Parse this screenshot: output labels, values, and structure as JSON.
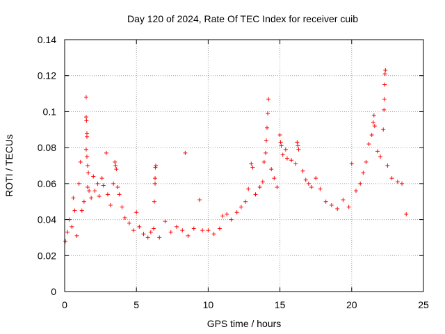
{
  "chart_data": {
    "type": "scatter",
    "title": "Day 120 of 2024, Rate Of TEC Index for receiver cuib",
    "xlabel": "GPS time / hours",
    "ylabel": "ROTI / TECUs",
    "xlim": [
      0,
      25
    ],
    "ylim": [
      0,
      0.14
    ],
    "xticks": [
      0,
      5,
      10,
      15,
      20,
      25
    ],
    "xtick_labels": [
      "0",
      "5",
      "10",
      "15",
      "20",
      "25"
    ],
    "yticks": [
      0,
      0.02,
      0.04,
      0.06,
      0.08,
      0.1,
      0.12,
      0.14
    ],
    "ytick_labels": [
      "0",
      "0.02",
      "0.04",
      "0.06",
      "0.08",
      "0.1",
      "0.12",
      "0.14"
    ],
    "grid": true,
    "marker": "plus",
    "color": "#ff0000",
    "series": [
      {
        "name": "ROTI",
        "points": [
          [
            0.05,
            0.028
          ],
          [
            0.2,
            0.033
          ],
          [
            0.35,
            0.04
          ],
          [
            0.5,
            0.036
          ],
          [
            0.6,
            0.052
          ],
          [
            0.7,
            0.045
          ],
          [
            0.85,
            0.031
          ],
          [
            1.0,
            0.06
          ],
          [
            1.1,
            0.072
          ],
          [
            1.2,
            0.045
          ],
          [
            1.35,
            0.05
          ],
          [
            1.5,
            0.108
          ],
          [
            1.5,
            0.097
          ],
          [
            1.52,
            0.095
          ],
          [
            1.55,
            0.088
          ],
          [
            1.55,
            0.086
          ],
          [
            1.5,
            0.079
          ],
          [
            1.55,
            0.075
          ],
          [
            1.6,
            0.07
          ],
          [
            1.65,
            0.066
          ],
          [
            1.6,
            0.058
          ],
          [
            1.7,
            0.056
          ],
          [
            1.85,
            0.052
          ],
          [
            2.0,
            0.064
          ],
          [
            2.1,
            0.056
          ],
          [
            2.3,
            0.06
          ],
          [
            2.4,
            0.053
          ],
          [
            2.6,
            0.063
          ],
          [
            2.7,
            0.059
          ],
          [
            2.9,
            0.077
          ],
          [
            3.0,
            0.054
          ],
          [
            3.2,
            0.048
          ],
          [
            3.4,
            0.06
          ],
          [
            3.5,
            0.072
          ],
          [
            3.55,
            0.07
          ],
          [
            3.6,
            0.068
          ],
          [
            3.7,
            0.058
          ],
          [
            3.8,
            0.054
          ],
          [
            4.0,
            0.047
          ],
          [
            4.2,
            0.041
          ],
          [
            4.5,
            0.038
          ],
          [
            4.8,
            0.034
          ],
          [
            5.0,
            0.044
          ],
          [
            5.2,
            0.036
          ],
          [
            5.5,
            0.032
          ],
          [
            5.8,
            0.03
          ],
          [
            6.0,
            0.033
          ],
          [
            6.2,
            0.035
          ],
          [
            6.25,
            0.05
          ],
          [
            6.3,
            0.06
          ],
          [
            6.3,
            0.063
          ],
          [
            6.32,
            0.069
          ],
          [
            6.35,
            0.07
          ],
          [
            6.6,
            0.03
          ],
          [
            7.0,
            0.039
          ],
          [
            7.4,
            0.033
          ],
          [
            7.8,
            0.036
          ],
          [
            8.2,
            0.034
          ],
          [
            8.4,
            0.077
          ],
          [
            8.6,
            0.031
          ],
          [
            9.0,
            0.035
          ],
          [
            9.4,
            0.051
          ],
          [
            9.6,
            0.034
          ],
          [
            10.0,
            0.034
          ],
          [
            10.4,
            0.032
          ],
          [
            10.8,
            0.035
          ],
          [
            11.0,
            0.042
          ],
          [
            11.3,
            0.043
          ],
          [
            11.6,
            0.04
          ],
          [
            12.0,
            0.044
          ],
          [
            12.3,
            0.047
          ],
          [
            12.6,
            0.05
          ],
          [
            12.8,
            0.057
          ],
          [
            13.0,
            0.071
          ],
          [
            13.1,
            0.069
          ],
          [
            13.3,
            0.054
          ],
          [
            13.6,
            0.058
          ],
          [
            13.8,
            0.061
          ],
          [
            13.9,
            0.072
          ],
          [
            14.0,
            0.077
          ],
          [
            14.05,
            0.084
          ],
          [
            14.1,
            0.091
          ],
          [
            14.15,
            0.099
          ],
          [
            14.2,
            0.107
          ],
          [
            14.4,
            0.068
          ],
          [
            14.6,
            0.063
          ],
          [
            14.8,
            0.058
          ],
          [
            15.0,
            0.087
          ],
          [
            15.05,
            0.083
          ],
          [
            15.1,
            0.081
          ],
          [
            15.2,
            0.076
          ],
          [
            15.4,
            0.079
          ],
          [
            15.5,
            0.074
          ],
          [
            15.8,
            0.073
          ],
          [
            16.1,
            0.071
          ],
          [
            16.2,
            0.083
          ],
          [
            16.25,
            0.081
          ],
          [
            16.3,
            0.079
          ],
          [
            16.6,
            0.067
          ],
          [
            16.8,
            0.062
          ],
          [
            17.0,
            0.06
          ],
          [
            17.2,
            0.058
          ],
          [
            17.5,
            0.063
          ],
          [
            17.8,
            0.057
          ],
          [
            18.2,
            0.05
          ],
          [
            18.6,
            0.048
          ],
          [
            19.0,
            0.046
          ],
          [
            19.4,
            0.051
          ],
          [
            19.8,
            0.047
          ],
          [
            20.0,
            0.071
          ],
          [
            20.3,
            0.056
          ],
          [
            20.6,
            0.06
          ],
          [
            20.8,
            0.066
          ],
          [
            21.0,
            0.072
          ],
          [
            21.2,
            0.082
          ],
          [
            21.4,
            0.087
          ],
          [
            21.5,
            0.094
          ],
          [
            21.55,
            0.098
          ],
          [
            21.6,
            0.092
          ],
          [
            21.8,
            0.078
          ],
          [
            22.0,
            0.075
          ],
          [
            22.2,
            0.09
          ],
          [
            22.25,
            0.101
          ],
          [
            22.28,
            0.107
          ],
          [
            22.3,
            0.115
          ],
          [
            22.32,
            0.121
          ],
          [
            22.35,
            0.123
          ],
          [
            22.5,
            0.07
          ],
          [
            22.8,
            0.063
          ],
          [
            23.2,
            0.061
          ],
          [
            23.5,
            0.06
          ],
          [
            23.8,
            0.043
          ]
        ]
      }
    ]
  }
}
